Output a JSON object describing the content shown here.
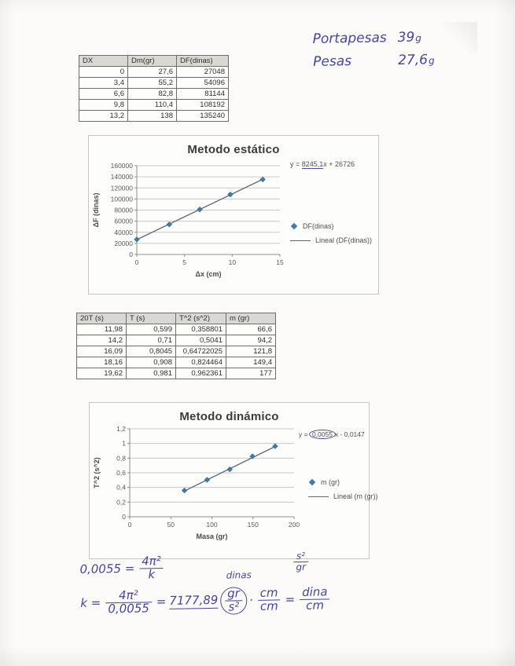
{
  "ink_color": "#4545a0",
  "marker_blue": "#3f7ba9",
  "notes_top": {
    "rows": [
      {
        "label": "Portapesas",
        "value": "39",
        "unit": "g"
      },
      {
        "label": "Pesas",
        "value": "27,6",
        "unit": "g"
      }
    ]
  },
  "table1": {
    "headers": [
      "DX",
      "Dm(gr)",
      "DF(dinas)"
    ],
    "rows": [
      [
        "0",
        "27,6",
        "27048"
      ],
      [
        "3,4",
        "55,2",
        "54096"
      ],
      [
        "6,6",
        "82,8",
        "81144"
      ],
      [
        "9,8",
        "110,4",
        "108192"
      ],
      [
        "13,2",
        "138",
        "135240"
      ]
    ]
  },
  "table2": {
    "headers": [
      "20T (s)",
      "T (s)",
      "T^2 (s^2)",
      "m (gr)"
    ],
    "rows": [
      [
        "11,98",
        "0,599",
        "0,358801",
        "66,6"
      ],
      [
        "14,2",
        "0,71",
        "0,5041",
        "94,2"
      ],
      [
        "16,09",
        "0,8045",
        "0,64722025",
        "121,8"
      ],
      [
        "18,16",
        "0,908",
        "0,824464",
        "149,4"
      ],
      [
        "19,62",
        "0,981",
        "0,962361",
        "177"
      ]
    ]
  },
  "chart_data": [
    {
      "type": "scatter",
      "title": "Metodo estático",
      "eq_prefix": "y = ",
      "eq_slope": "8245,1",
      "eq_suffix": "x + 26726",
      "xlabel": "Δx (cm)",
      "ylabel": "ΔF (dinas)",
      "x": [
        0,
        3.4,
        6.6,
        9.8,
        13.2
      ],
      "y": [
        27048,
        54096,
        81144,
        108192,
        135240
      ],
      "trend": {
        "slope": 8245.1,
        "intercept": 26726
      },
      "xlim": [
        0,
        15
      ],
      "ylim": [
        0,
        160000
      ],
      "xtick_values": [
        0,
        5,
        10,
        15
      ],
      "xtick_labels": [
        "0",
        "5",
        "10",
        "15"
      ],
      "ytick_values": [
        0,
        20000,
        40000,
        60000,
        80000,
        100000,
        120000,
        140000,
        160000
      ],
      "ytick_labels": [
        "0",
        "20000",
        "40000",
        "60000",
        "80000",
        "100000",
        "120000",
        "140000",
        "160000"
      ],
      "legend": [
        "DF(dinas)",
        "Lineal (DF(dinas))"
      ],
      "grid": true,
      "legend_position": "right",
      "marker_color": "#3f7ba9",
      "trend_color": "#5c6a79"
    },
    {
      "type": "scatter",
      "title": "Metodo dinámico",
      "eq_prefix": "y = ",
      "eq_slope": "0,0055",
      "eq_suffix": "x - 0,0147",
      "xlabel": "Masa (gr)",
      "ylabel": "T^2 (s^2)",
      "x": [
        66.6,
        94.2,
        121.8,
        149.4,
        177
      ],
      "y": [
        0.358801,
        0.5041,
        0.64722025,
        0.824464,
        0.962361
      ],
      "trend": {
        "slope": 0.0055,
        "intercept": -0.0147
      },
      "xlim": [
        0,
        200
      ],
      "ylim": [
        0,
        1.2
      ],
      "xtick_values": [
        0,
        50,
        100,
        150,
        200
      ],
      "xtick_labels": [
        "0",
        "50",
        "100",
        "150",
        "200"
      ],
      "ytick_values": [
        0,
        0.2,
        0.4,
        0.6,
        0.8,
        1,
        1.2
      ],
      "ytick_labels": [
        "0",
        "0,2",
        "0,4",
        "0,6",
        "0,8",
        "1",
        "1,2"
      ],
      "legend": [
        "m (gr)",
        "Lineal (m (gr))"
      ],
      "grid": true,
      "legend_position": "right",
      "marker_color": "#3f7ba9",
      "trend_color": "#5c6a79"
    }
  ],
  "notes_bottom": {
    "l1_lhs": "0,0055 =",
    "l1_frac_num": "4π²",
    "l1_frac_den": "k",
    "side_frac_num": "s²",
    "side_frac_den": "gr",
    "above_circle_note": "dinas",
    "l2_lhs": "k =",
    "l2_frac_num": "4π²",
    "l2_frac_den": "0,0055",
    "l2_equals": "=",
    "l2_result": "7177,89",
    "circle_frac_num": "gr",
    "circle_frac_den": "s²",
    "dot": "·",
    "cm_frac_num": "cm",
    "cm_frac_den": "cm",
    "equals2": "=",
    "result_frac_num": "dina",
    "result_frac_den": "cm"
  }
}
